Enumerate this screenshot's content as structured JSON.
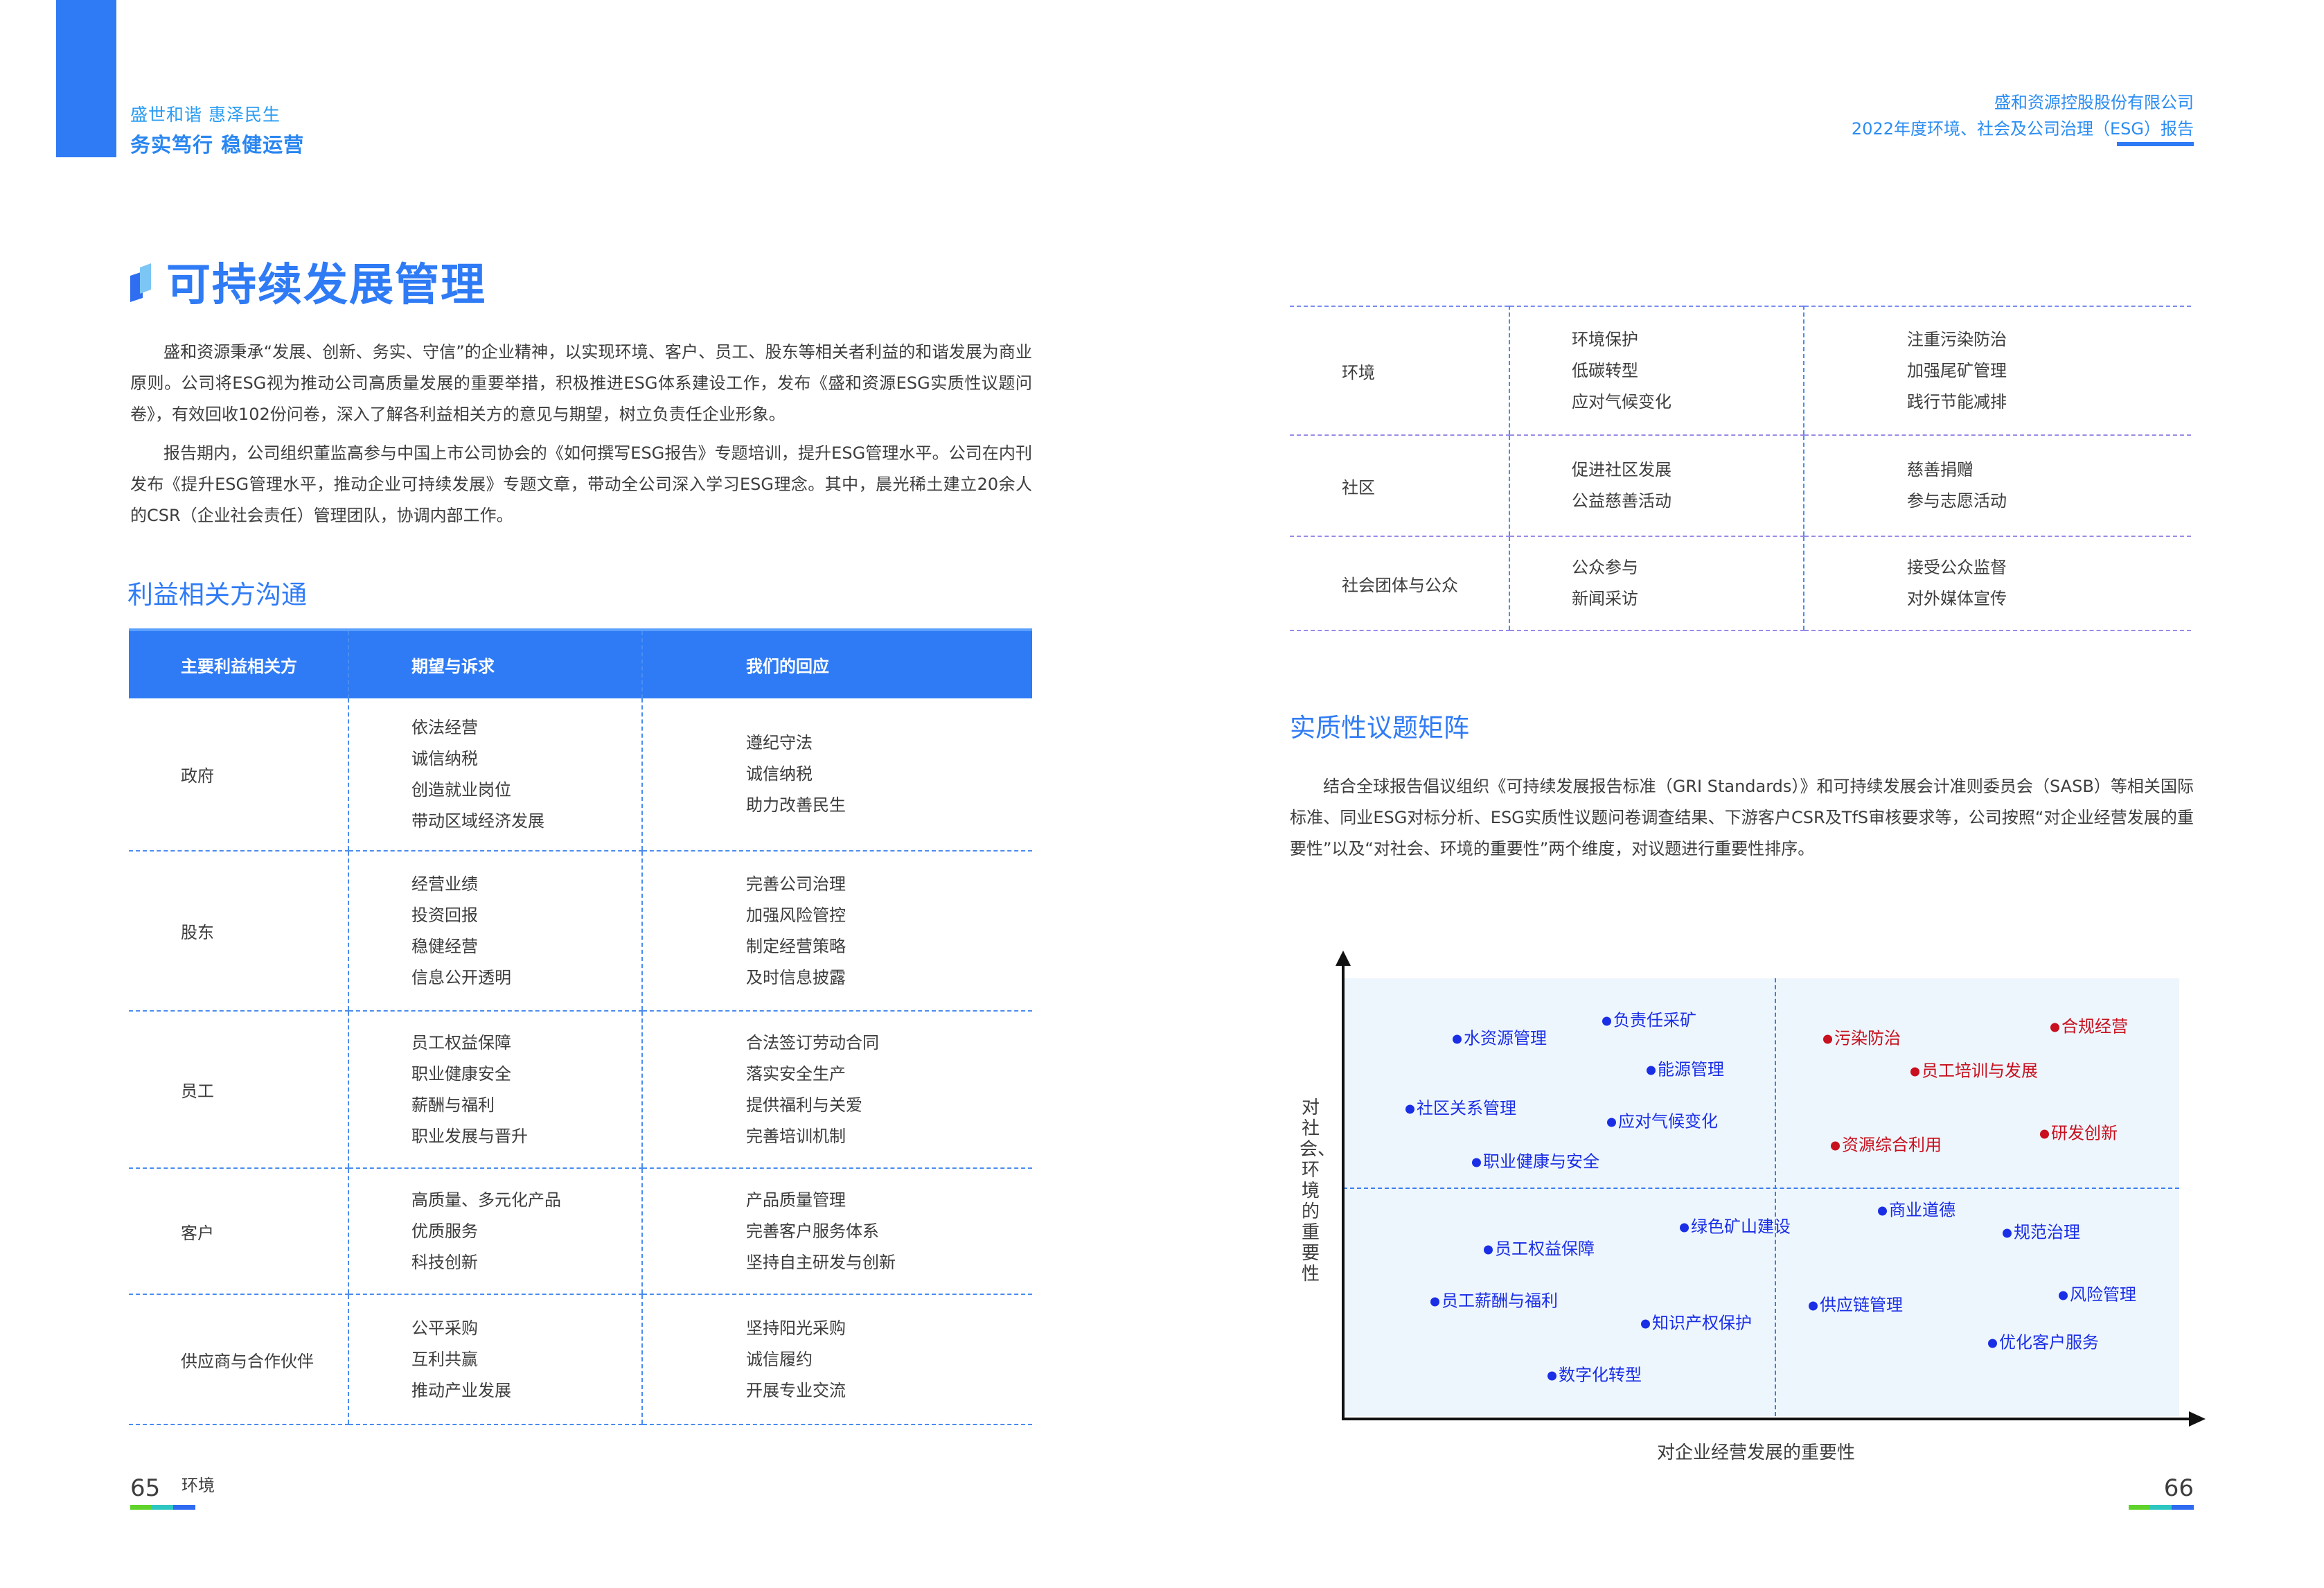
{
  "header_left": {
    "slogan1": "盛世和谐  惠泽民生",
    "slogan2": "务实笃行 稳健运营"
  },
  "header_right": {
    "company": "盛和资源控股股份有限公司",
    "report": "2022年度环境、社会及公司治理（ESG）报告"
  },
  "title": "可持续发展管理",
  "intro": [
    "盛和资源秉承“发展、创新、务实、守信”的企业精神，以实现环境、客户、员工、股东等相关者利益的和谐发展为商业原则。公司将ESG视为推动公司高质量发展的重要举措，积极推进ESG体系建设工作，发布《盛和资源ESG实质性议题问卷》，有效回收102份问卷，深入了解各利益相关方的意见与期望，树立负责任企业形象。",
    "报告期内，公司组织董监高参与中国上市公司协会的《如何撰写ESG报告》专题培训，提升ESG管理水平。公司在内刊发布《提升ESG管理水平，推动企业可持续发展》专题文章，带动全公司深入学习ESG理念。其中，晨光稀土建立20余人的CSR（企业社会责任）管理团队，协调内部工作。"
  ],
  "stakeholder_section": "利益相关方沟通",
  "stakeholder_table": {
    "headers": [
      "主要利益相关方",
      "期望与诉求",
      "我们的回应"
    ],
    "rows": [
      {
        "party": "政府",
        "expectations": [
          "依法经营",
          "诚信纳税",
          "创造就业岗位",
          "带动区域经济发展"
        ],
        "responses": [
          "遵纪守法",
          "诚信纳税",
          "助力改善民生"
        ]
      },
      {
        "party": "股东",
        "expectations": [
          "经营业绩",
          "投资回报",
          "稳健经营",
          "信息公开透明"
        ],
        "responses": [
          "完善公司治理",
          "加强风险管控",
          "制定经营策略",
          "及时信息披露"
        ]
      },
      {
        "party": "员工",
        "expectations": [
          "员工权益保障",
          "职业健康安全",
          "薪酬与福利",
          "职业发展与晋升"
        ],
        "responses": [
          "合法签订劳动合同",
          "落实安全生产",
          "提供福利与关爱",
          "完善培训机制"
        ]
      },
      {
        "party": "客户",
        "expectations": [
          "高质量、多元化产品",
          "优质服务",
          "科技创新"
        ],
        "responses": [
          "产品质量管理",
          "完善客户服务体系",
          "坚持自主研发与创新"
        ]
      },
      {
        "party": "供应商与合作伙伴",
        "expectations": [
          "公平采购",
          "互利共赢",
          "推动产业发展"
        ],
        "responses": [
          "坚持阳光采购",
          "诚信履约",
          "开展专业交流"
        ]
      }
    ],
    "continued_rows": [
      {
        "party": "环境",
        "expectations": [
          "环境保护",
          "低碳转型",
          "应对气候变化"
        ],
        "responses": [
          "注重污染防治",
          "加强尾矿管理",
          "践行节能减排"
        ]
      },
      {
        "party": "社区",
        "expectations": [
          "促进社区发展",
          "公益慈善活动"
        ],
        "responses": [
          "慈善捐赠",
          "参与志愿活动"
        ]
      },
      {
        "party": "社会团体与公众",
        "expectations": [
          "公众参与",
          "新闻采访"
        ],
        "responses": [
          "接受公众监督",
          "对外媒体宣传"
        ]
      }
    ]
  },
  "matrix_section": "实质性议题矩阵",
  "matrix_intro": "结合全球报告倡议组织《可持续发展报告标准（GRI  Standards）》和可持续发展会计准则委员会（SASB）等相关国际标准、同业ESG对标分析、ESG实质性议题问卷调查结果、下游客户CSR及TfS审核要求等，公司按照“对企业经营发展的重要性”以及“对社会、环境的重要性”两个维度，对议题进行重要性排序。",
  "chart_data": {
    "type": "scatter",
    "xlabel": "对企业经营发展的重要性",
    "ylabel": "对社会、环境的重要性",
    "grid": false,
    "quadrant_dividers": true,
    "colors": {
      "high": "#c8101e",
      "normal": "#1a2ee6",
      "background": "#eef6fd"
    },
    "points": [
      {
        "label": "水资源管理",
        "quadrant": "upper-left",
        "color": "normal"
      },
      {
        "label": "负责任采矿",
        "quadrant": "upper-left",
        "color": "normal"
      },
      {
        "label": "能源管理",
        "quadrant": "upper-left",
        "color": "normal"
      },
      {
        "label": "社区关系管理",
        "quadrant": "upper-left",
        "color": "normal"
      },
      {
        "label": "应对气候变化",
        "quadrant": "upper-left",
        "color": "normal"
      },
      {
        "label": "职业健康与安全",
        "quadrant": "upper-left",
        "color": "normal"
      },
      {
        "label": "污染防治",
        "quadrant": "upper-right",
        "color": "high"
      },
      {
        "label": "合规经营",
        "quadrant": "upper-right",
        "color": "high"
      },
      {
        "label": "员工培训与发展",
        "quadrant": "upper-right",
        "color": "high"
      },
      {
        "label": "资源综合利用",
        "quadrant": "upper-right",
        "color": "high"
      },
      {
        "label": "研发创新",
        "quadrant": "upper-right",
        "color": "high"
      },
      {
        "label": "商业道德",
        "quadrant": "lower-right",
        "color": "normal"
      },
      {
        "label": "绿色矿山建设",
        "quadrant": "lower-left",
        "color": "normal"
      },
      {
        "label": "规范治理",
        "quadrant": "lower-right",
        "color": "normal"
      },
      {
        "label": "员工权益保障",
        "quadrant": "lower-left",
        "color": "normal"
      },
      {
        "label": "员工薪酬与福利",
        "quadrant": "lower-left",
        "color": "normal"
      },
      {
        "label": "供应链管理",
        "quadrant": "lower-right",
        "color": "normal"
      },
      {
        "label": "风险管理",
        "quadrant": "lower-right",
        "color": "normal"
      },
      {
        "label": "知识产权保护",
        "quadrant": "lower-left",
        "color": "normal"
      },
      {
        "label": "优化客户服务",
        "quadrant": "lower-right",
        "color": "normal"
      },
      {
        "label": "数字化转型",
        "quadrant": "lower-left",
        "color": "normal"
      }
    ]
  },
  "footer": {
    "left_page": "65",
    "left_section": "环境",
    "right_page": "66"
  }
}
